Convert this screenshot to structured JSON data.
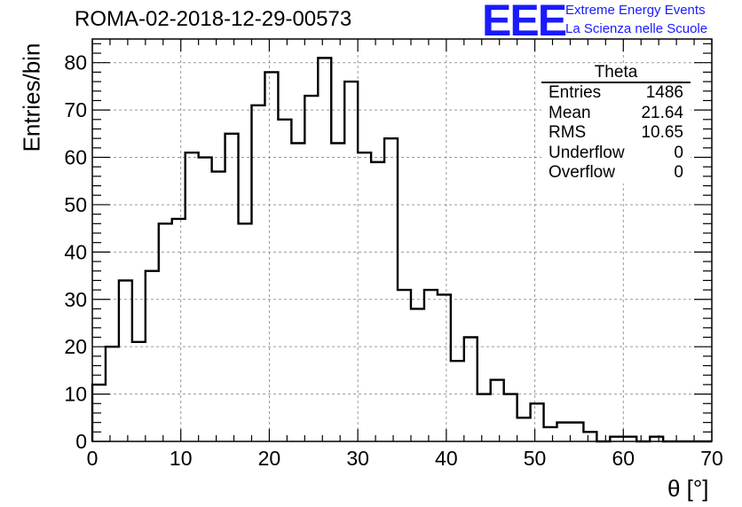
{
  "title": "ROMA-02-2018-12-29-00573",
  "logo": {
    "mark": "EEE",
    "line1": "Extreme Energy Events",
    "line2": "La Scienza nelle Scuole",
    "color": "#1a1aff"
  },
  "stats": {
    "title": "Theta",
    "rows": [
      {
        "label": "Entries",
        "value": "1486"
      },
      {
        "label": "Mean",
        "value": "21.64"
      },
      {
        "label": "RMS",
        "value": "10.65"
      },
      {
        "label": "Underflow",
        "value": "0"
      },
      {
        "label": "Overflow",
        "value": "0"
      }
    ]
  },
  "chart_data": {
    "type": "histogram",
    "title": "ROMA-02-2018-12-29-00573",
    "xlabel": "θ [°]",
    "ylabel": "Entries/bin",
    "xlim": [
      0,
      70
    ],
    "ylim": [
      0,
      85
    ],
    "bin_width": 1.5,
    "bin_start": 0,
    "values": [
      12,
      20,
      34,
      21,
      36,
      46,
      47,
      61,
      60,
      57,
      65,
      46,
      71,
      78,
      68,
      63,
      73,
      81,
      63,
      76,
      61,
      59,
      64,
      32,
      28,
      32,
      31,
      17,
      22,
      10,
      13,
      10,
      5,
      8,
      3,
      4,
      4,
      2,
      0,
      1,
      1,
      0,
      1,
      0,
      0,
      0,
      0
    ],
    "xticks": [
      0,
      10,
      20,
      30,
      40,
      50,
      60,
      70
    ],
    "yticks": [
      0,
      10,
      20,
      30,
      40,
      50,
      60,
      70,
      80
    ],
    "grid": true
  }
}
